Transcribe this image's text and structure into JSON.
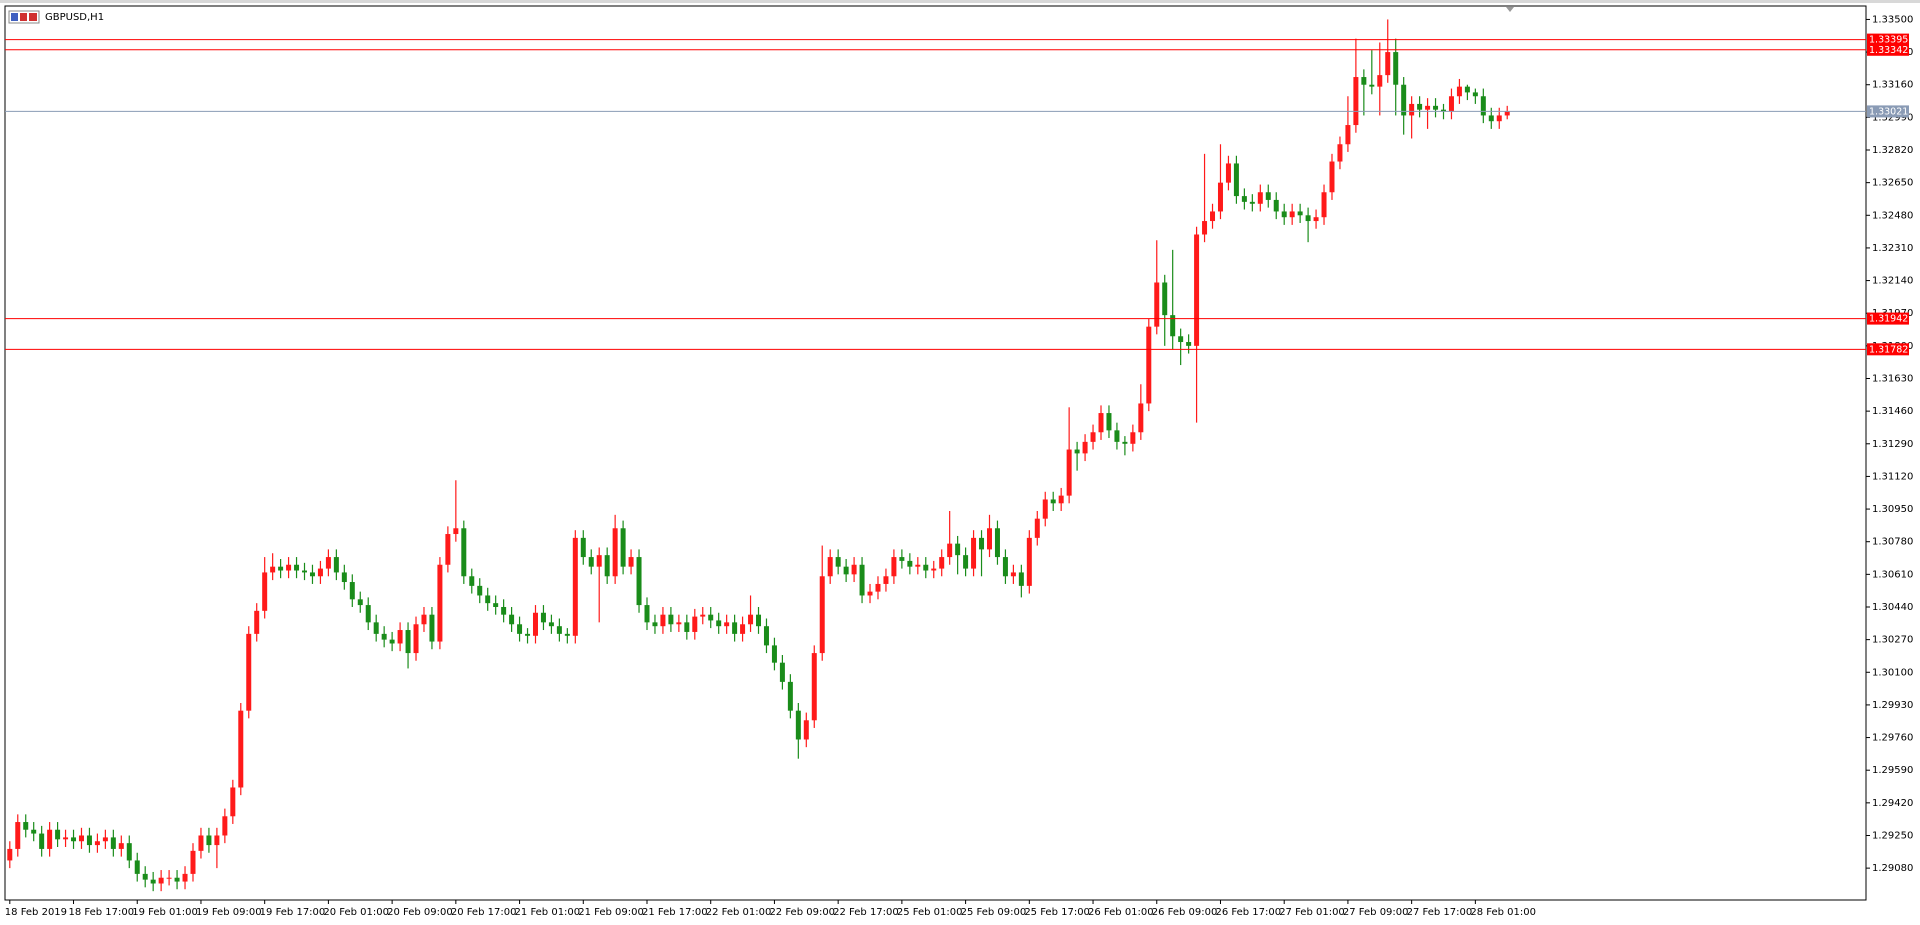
{
  "chart_data": {
    "type": "candlestick",
    "title": "GBPUSD,H1",
    "up_color": "#ff1a1a",
    "down_color": "#1a8c1a",
    "categories": [
      "18 Feb 2019",
      null,
      null,
      null,
      null,
      null,
      null,
      null,
      "18 Feb 17:00",
      null,
      null,
      null,
      null,
      null,
      null,
      null,
      "19 Feb 01:00",
      null,
      null,
      null,
      null,
      null,
      null,
      null,
      "19 Feb 09:00",
      null,
      null,
      null,
      null,
      null,
      null,
      null,
      "19 Feb 17:00",
      null,
      null,
      null,
      null,
      null,
      null,
      null,
      "20 Feb 01:00",
      null,
      null,
      null,
      null,
      null,
      null,
      null,
      "20 Feb 09:00",
      null,
      null,
      null,
      null,
      null,
      null,
      null,
      "20 Feb 17:00",
      null,
      null,
      null,
      null,
      null,
      null,
      null,
      "21 Feb 01:00",
      null,
      null,
      null,
      null,
      null,
      null,
      null,
      "21 Feb 09:00",
      null,
      null,
      null,
      null,
      null,
      null,
      null,
      "21 Feb 17:00",
      null,
      null,
      null,
      null,
      null,
      null,
      null,
      "22 Feb 01:00",
      null,
      null,
      null,
      null,
      null,
      null,
      null,
      "22 Feb 09:00",
      null,
      null,
      null,
      null,
      null,
      null,
      null,
      "22 Feb 17:00",
      null,
      null,
      null,
      null,
      null,
      null,
      null,
      "25 Feb 01:00",
      null,
      null,
      null,
      null,
      null,
      null,
      null,
      "25 Feb 09:00",
      null,
      null,
      null,
      null,
      null,
      null,
      null,
      "25 Feb 17:00",
      null,
      null,
      null,
      null,
      null,
      null,
      null,
      "26 Feb 01:00",
      null,
      null,
      null,
      null,
      null,
      null,
      null,
      "26 Feb 09:00",
      null,
      null,
      null,
      null,
      null,
      null,
      null,
      "26 Feb 17:00",
      null,
      null,
      null,
      null,
      null,
      null,
      null,
      "27 Feb 01:00",
      null,
      null,
      null,
      null,
      null,
      null,
      null,
      "27 Feb 09:00",
      null,
      null,
      null,
      null,
      null,
      null,
      null,
      "27 Feb 17:00",
      null,
      null,
      null,
      null,
      null,
      null,
      null,
      "28 Feb 01:00",
      null,
      null,
      null,
      null
    ],
    "open": [
      1.2912,
      1.2918,
      1.2932,
      1.2928,
      1.2926,
      1.2918,
      1.2928,
      1.2923,
      1.2924,
      1.2922,
      1.2925,
      1.292,
      1.2922,
      1.2924,
      1.2918,
      1.2921,
      1.2912,
      1.2905,
      1.2902,
      1.29,
      1.2903,
      1.2903,
      1.2901,
      1.2905,
      1.2917,
      1.2925,
      1.292,
      1.2925,
      1.2935,
      1.295,
      1.299,
      1.303,
      1.3042,
      1.3062,
      1.3065,
      1.3063,
      1.3066,
      1.3063,
      1.3062,
      1.306,
      1.3064,
      1.307,
      1.3062,
      1.3057,
      1.3048,
      1.3045,
      1.3036,
      1.303,
      1.3027,
      1.3025,
      1.3032,
      1.302,
      1.3035,
      1.304,
      1.3026,
      1.3066,
      1.3082,
      1.3085,
      1.306,
      1.3055,
      1.305,
      1.3046,
      1.3044,
      1.304,
      1.3035,
      1.303,
      1.3029,
      1.3041,
      1.3036,
      1.3034,
      1.303,
      1.3029,
      1.308,
      1.307,
      1.3065,
      1.3071,
      1.306,
      1.3085,
      1.3065,
      1.307,
      1.3045,
      1.3036,
      1.3034,
      1.304,
      1.3035,
      1.3036,
      1.3031,
      1.3039,
      1.304,
      1.3037,
      1.3034,
      1.3036,
      1.303,
      1.3035,
      1.304,
      1.3034,
      1.3024,
      1.3015,
      1.3005,
      1.299,
      1.2975,
      1.2985,
      1.302,
      1.306,
      1.307,
      1.3065,
      1.3061,
      1.3066,
      1.305,
      1.3052,
      1.3056,
      1.306,
      1.307,
      1.3068,
      1.3065,
      1.3066,
      1.3063,
      1.3064,
      1.307,
      1.3077,
      1.3071,
      1.3064,
      1.308,
      1.3074,
      1.3085,
      1.307,
      1.306,
      1.3062,
      1.3055,
      1.308,
      1.309,
      1.31,
      1.3098,
      1.3102,
      1.3126,
      1.3124,
      1.313,
      1.3135,
      1.3145,
      1.3136,
      1.313,
      1.3129,
      1.3135,
      1.315,
      1.319,
      1.3213,
      1.3196,
      1.3185,
      1.3182,
      1.318,
      1.3238,
      1.3245,
      1.325,
      1.3265,
      1.3275,
      1.3258,
      1.3255,
      1.3254,
      1.326,
      1.3256,
      1.325,
      1.3247,
      1.325,
      1.3248,
      1.3245,
      1.3247,
      1.326,
      1.3276,
      1.3285,
      1.3295,
      1.332,
      1.3316,
      1.3315,
      1.3321,
      1.3333,
      1.3316,
      1.33,
      1.3306,
      1.3303,
      1.3305,
      1.3303,
      1.3302,
      1.331,
      1.3315,
      1.3312,
      1.331,
      1.33,
      1.3297,
      1.33
    ],
    "high": [
      1.2922,
      1.2936,
      1.2936,
      1.2932,
      1.293,
      1.2932,
      1.2932,
      1.2928,
      1.2928,
      1.2929,
      1.2929,
      1.2926,
      1.2928,
      1.2928,
      1.2925,
      1.2925,
      1.2916,
      1.2909,
      1.2906,
      1.2907,
      1.2907,
      1.2907,
      1.2909,
      1.2921,
      1.2929,
      1.2929,
      1.2929,
      1.2939,
      1.2954,
      1.2994,
      1.3034,
      1.3046,
      1.307,
      1.3072,
      1.3069,
      1.307,
      1.307,
      1.3067,
      1.3066,
      1.3068,
      1.3074,
      1.3074,
      1.3066,
      1.3061,
      1.3052,
      1.3049,
      1.304,
      1.3034,
      1.3031,
      1.3036,
      1.3036,
      1.3039,
      1.3044,
      1.3044,
      1.307,
      1.3086,
      1.311,
      1.3089,
      1.3064,
      1.3059,
      1.3054,
      1.305,
      1.3048,
      1.3044,
      1.3039,
      1.3033,
      1.3045,
      1.3045,
      1.304,
      1.3038,
      1.3033,
      1.3084,
      1.3084,
      1.3074,
      1.3075,
      1.3075,
      1.3092,
      1.3089,
      1.3074,
      1.3074,
      1.3049,
      1.304,
      1.3044,
      1.3044,
      1.304,
      1.304,
      1.3043,
      1.3044,
      1.3044,
      1.3041,
      1.304,
      1.304,
      1.3039,
      1.305,
      1.3044,
      1.3038,
      1.3028,
      1.3019,
      1.3009,
      1.2994,
      1.2989,
      1.3024,
      1.3076,
      1.3074,
      1.3074,
      1.3069,
      1.307,
      1.307,
      1.3056,
      1.306,
      1.3064,
      1.3074,
      1.3074,
      1.3072,
      1.307,
      1.307,
      1.3068,
      1.3074,
      1.3094,
      1.3081,
      1.3075,
      1.3084,
      1.3084,
      1.3092,
      1.3089,
      1.3074,
      1.3066,
      1.3066,
      1.3084,
      1.3094,
      1.3104,
      1.3104,
      1.3106,
      1.3148,
      1.313,
      1.3134,
      1.3139,
      1.3149,
      1.3149,
      1.314,
      1.3133,
      1.3139,
      1.316,
      1.3194,
      1.3235,
      1.3217,
      1.323,
      1.3189,
      1.3186,
      1.3242,
      1.328,
      1.3254,
      1.3285,
      1.3279,
      1.3279,
      1.3262,
      1.3259,
      1.3264,
      1.3264,
      1.326,
      1.3254,
      1.3254,
      1.3254,
      1.3252,
      1.3251,
      1.3264,
      1.328,
      1.3289,
      1.331,
      1.334,
      1.3324,
      1.3334,
      1.3338,
      1.335,
      1.334,
      1.332,
      1.331,
      1.331,
      1.3309,
      1.3309,
      1.3306,
      1.3314,
      1.3319,
      1.3316,
      1.3314,
      1.3314,
      1.3304,
      1.3304,
      1.3305
    ],
    "low": [
      1.2908,
      1.2914,
      1.2924,
      1.2922,
      1.2914,
      1.2914,
      1.2919,
      1.2919,
      1.2918,
      1.2918,
      1.2916,
      1.2916,
      1.2918,
      1.2914,
      1.2914,
      1.2908,
      1.2901,
      1.2898,
      1.2896,
      1.2896,
      1.2899,
      1.2897,
      1.2897,
      1.2901,
      1.2913,
      1.2916,
      1.2908,
      1.2921,
      1.2931,
      1.2946,
      1.2986,
      1.3026,
      1.3038,
      1.3058,
      1.3059,
      1.3059,
      1.3059,
      1.3058,
      1.3056,
      1.3056,
      1.306,
      1.3058,
      1.3053,
      1.3044,
      1.3041,
      1.3032,
      1.3026,
      1.3023,
      1.3021,
      1.3021,
      1.3012,
      1.3016,
      1.3031,
      1.3022,
      1.3022,
      1.3062,
      1.3078,
      1.3056,
      1.3051,
      1.3046,
      1.3042,
      1.304,
      1.3036,
      1.3031,
      1.3026,
      1.3025,
      1.3025,
      1.3032,
      1.303,
      1.3026,
      1.3025,
      1.3025,
      1.3066,
      1.3061,
      1.3036,
      1.3056,
      1.3056,
      1.3061,
      1.3061,
      1.3041,
      1.3032,
      1.303,
      1.303,
      1.3031,
      1.3031,
      1.3027,
      1.3027,
      1.3035,
      1.3033,
      1.303,
      1.303,
      1.3026,
      1.3026,
      1.3031,
      1.303,
      1.302,
      1.3011,
      1.3001,
      1.2986,
      1.2965,
      1.2971,
      1.2981,
      1.3016,
      1.3056,
      1.3061,
      1.3057,
      1.3057,
      1.3046,
      1.3046,
      1.3048,
      1.3052,
      1.3056,
      1.3064,
      1.3061,
      1.3061,
      1.3059,
      1.3059,
      1.306,
      1.3066,
      1.3061,
      1.306,
      1.306,
      1.306,
      1.307,
      1.3066,
      1.3056,
      1.3056,
      1.3049,
      1.3051,
      1.3076,
      1.3086,
      1.3094,
      1.3094,
      1.3098,
      1.3115,
      1.312,
      1.3126,
      1.3131,
      1.3132,
      1.3126,
      1.3123,
      1.3125,
      1.3131,
      1.3146,
      1.3186,
      1.318,
      1.3178,
      1.317,
      1.3176,
      1.314,
      1.3234,
      1.3241,
      1.3246,
      1.3261,
      1.3254,
      1.3251,
      1.325,
      1.325,
      1.3252,
      1.3246,
      1.3243,
      1.3243,
      1.3244,
      1.3234,
      1.3241,
      1.3243,
      1.3256,
      1.3272,
      1.3281,
      1.3291,
      1.33,
      1.3311,
      1.33,
      1.3317,
      1.33,
      1.329,
      1.3288,
      1.3299,
      1.3293,
      1.3299,
      1.3298,
      1.3298,
      1.3306,
      1.3308,
      1.3306,
      1.3296,
      1.3293,
      1.3293,
      1.3298
    ],
    "close": [
      1.2918,
      1.2932,
      1.2928,
      1.2926,
      1.2918,
      1.2928,
      1.2923,
      1.2924,
      1.2922,
      1.2925,
      1.292,
      1.2922,
      1.2924,
      1.2918,
      1.2921,
      1.2912,
      1.2905,
      1.2902,
      1.29,
      1.2903,
      1.2903,
      1.2901,
      1.2905,
      1.2917,
      1.2925,
      1.292,
      1.2925,
      1.2935,
      1.295,
      1.299,
      1.303,
      1.3042,
      1.3062,
      1.3065,
      1.3063,
      1.3066,
      1.3063,
      1.3062,
      1.306,
      1.3064,
      1.307,
      1.3062,
      1.3057,
      1.3048,
      1.3045,
      1.3036,
      1.303,
      1.3027,
      1.3025,
      1.3032,
      1.302,
      1.3035,
      1.304,
      1.3026,
      1.3066,
      1.3082,
      1.3085,
      1.306,
      1.3055,
      1.305,
      1.3046,
      1.3044,
      1.304,
      1.3035,
      1.303,
      1.3029,
      1.3041,
      1.3036,
      1.3034,
      1.303,
      1.3029,
      1.308,
      1.307,
      1.3065,
      1.3071,
      1.306,
      1.3085,
      1.3065,
      1.307,
      1.3045,
      1.3036,
      1.3034,
      1.304,
      1.3035,
      1.3036,
      1.3031,
      1.3039,
      1.304,
      1.3037,
      1.3034,
      1.3036,
      1.303,
      1.3035,
      1.304,
      1.3034,
      1.3024,
      1.3015,
      1.3005,
      1.299,
      1.2975,
      1.2985,
      1.302,
      1.306,
      1.307,
      1.3065,
      1.3061,
      1.3066,
      1.305,
      1.3052,
      1.3056,
      1.306,
      1.307,
      1.3068,
      1.3065,
      1.3066,
      1.3063,
      1.3064,
      1.307,
      1.3077,
      1.3071,
      1.3064,
      1.308,
      1.3074,
      1.3085,
      1.307,
      1.306,
      1.3062,
      1.3055,
      1.308,
      1.309,
      1.31,
      1.3098,
      1.3102,
      1.3126,
      1.3124,
      1.313,
      1.3135,
      1.3145,
      1.3136,
      1.313,
      1.3129,
      1.3135,
      1.315,
      1.319,
      1.3213,
      1.3196,
      1.3185,
      1.3182,
      1.318,
      1.3238,
      1.3245,
      1.325,
      1.3265,
      1.3275,
      1.3258,
      1.3255,
      1.3254,
      1.326,
      1.3256,
      1.325,
      1.3247,
      1.325,
      1.3248,
      1.3245,
      1.3247,
      1.326,
      1.3276,
      1.3285,
      1.3295,
      1.332,
      1.3316,
      1.3315,
      1.3321,
      1.3333,
      1.3316,
      1.33,
      1.3306,
      1.3303,
      1.3305,
      1.3303,
      1.3302,
      1.331,
      1.3315,
      1.3312,
      1.331,
      1.33,
      1.3297,
      1.33,
      1.33021
    ],
    "ylim": [
      1.28914,
      1.3357
    ],
    "yticks": [
      {
        "value": 1.335,
        "label": "1.33500"
      },
      {
        "value": 1.3333,
        "label": "1.33330"
      },
      {
        "value": 1.3316,
        "label": "1.33160"
      },
      {
        "value": 1.3299,
        "label": "1.32990"
      },
      {
        "value": 1.3282,
        "label": "1.32820"
      },
      {
        "value": 1.3265,
        "label": "1.32650"
      },
      {
        "value": 1.3248,
        "label": "1.32480"
      },
      {
        "value": 1.3231,
        "label": "1.32310"
      },
      {
        "value": 1.3214,
        "label": "1.32140"
      },
      {
        "value": 1.3197,
        "label": "1.31970"
      },
      {
        "value": 1.318,
        "label": "1.31800"
      },
      {
        "value": 1.3163,
        "label": "1.31630"
      },
      {
        "value": 1.3146,
        "label": "1.31460"
      },
      {
        "value": 1.3129,
        "label": "1.31290"
      },
      {
        "value": 1.3112,
        "label": "1.31120"
      },
      {
        "value": 1.3095,
        "label": "1.30950"
      },
      {
        "value": 1.3078,
        "label": "1.30780"
      },
      {
        "value": 1.3061,
        "label": "1.30610"
      },
      {
        "value": 1.3044,
        "label": "1.30440"
      },
      {
        "value": 1.3027,
        "label": "1.30270"
      },
      {
        "value": 1.301,
        "label": "1.30100"
      },
      {
        "value": 1.2993,
        "label": "1.29930"
      },
      {
        "value": 1.2976,
        "label": "1.29760"
      },
      {
        "value": 1.2959,
        "label": "1.29590"
      },
      {
        "value": 1.2942,
        "label": "1.29420"
      },
      {
        "value": 1.2925,
        "label": "1.29250"
      },
      {
        "value": 1.2908,
        "label": "1.29080"
      }
    ],
    "hlines": [
      {
        "value": 1.33395,
        "color": "#ff0000"
      },
      {
        "value": 1.33342,
        "color": "#ff0000"
      },
      {
        "value": 1.33021,
        "color": "#8a9bb5"
      },
      {
        "value": 1.31942,
        "color": "#ff0000"
      },
      {
        "value": 1.31782,
        "color": "#ff0000"
      }
    ],
    "grid": false
  }
}
